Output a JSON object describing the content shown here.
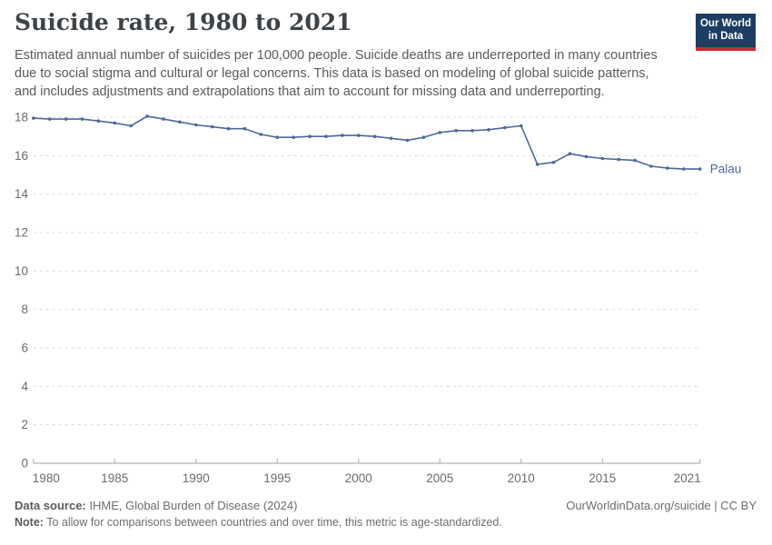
{
  "header": {
    "title": "Suicide rate, 1980 to 2021",
    "subtitle_lines": [
      "Estimated annual number of suicides per 100,000 people. Suicide deaths are underreported in many countries",
      "due to social stigma and cultural or legal concerns. This data is based on modeling of global suicide patterns,",
      "and includes adjustments and extrapolations that aim to account for missing data and underreporting."
    ],
    "logo": {
      "line1": "Our World",
      "line2": "in Data",
      "bg_color": "#1d3d63",
      "accent_color": "#cc2b32"
    }
  },
  "chart_data": {
    "type": "line",
    "title": "Suicide rate, 1980 to 2021",
    "xlabel": "",
    "ylabel": "",
    "xlim": [
      1980,
      2021
    ],
    "ylim": [
      0,
      18
    ],
    "grid": "horizontal-dashed",
    "legend_position": "end-of-line-label",
    "x_ticks": [
      1980,
      1985,
      1990,
      1995,
      2000,
      2005,
      2010,
      2015,
      2021
    ],
    "y_ticks": [
      0,
      2,
      4,
      6,
      8,
      10,
      12,
      14,
      16,
      18
    ],
    "x": [
      1980,
      1981,
      1982,
      1983,
      1984,
      1985,
      1986,
      1987,
      1988,
      1989,
      1990,
      1991,
      1992,
      1993,
      1994,
      1995,
      1996,
      1997,
      1998,
      1999,
      2000,
      2001,
      2002,
      2003,
      2004,
      2005,
      2006,
      2007,
      2008,
      2009,
      2010,
      2011,
      2012,
      2013,
      2014,
      2015,
      2016,
      2017,
      2018,
      2019,
      2020,
      2021
    ],
    "series": [
      {
        "name": "Palau",
        "color": "#4C6A9C",
        "values": [
          17.95,
          17.9,
          17.9,
          17.9,
          17.8,
          17.7,
          17.55,
          18.05,
          17.9,
          17.75,
          17.6,
          17.5,
          17.4,
          17.4,
          17.1,
          16.95,
          16.95,
          17.0,
          17.0,
          17.05,
          17.05,
          17.0,
          16.9,
          16.8,
          16.95,
          17.2,
          17.3,
          17.3,
          17.35,
          17.45,
          17.55,
          15.55,
          15.65,
          16.1,
          15.95,
          15.85,
          15.8,
          15.75,
          15.45,
          15.35,
          15.3,
          15.3
        ]
      }
    ]
  },
  "footer": {
    "source_label": "Data source:",
    "source_text": "IHME, Global Burden of Disease (2024)",
    "link_text": "OurWorldinData.org/suicide | CC BY",
    "note_label": "Note:",
    "note_text": "To allow for comparisons between countries and over time, this metric is age-standardized."
  }
}
